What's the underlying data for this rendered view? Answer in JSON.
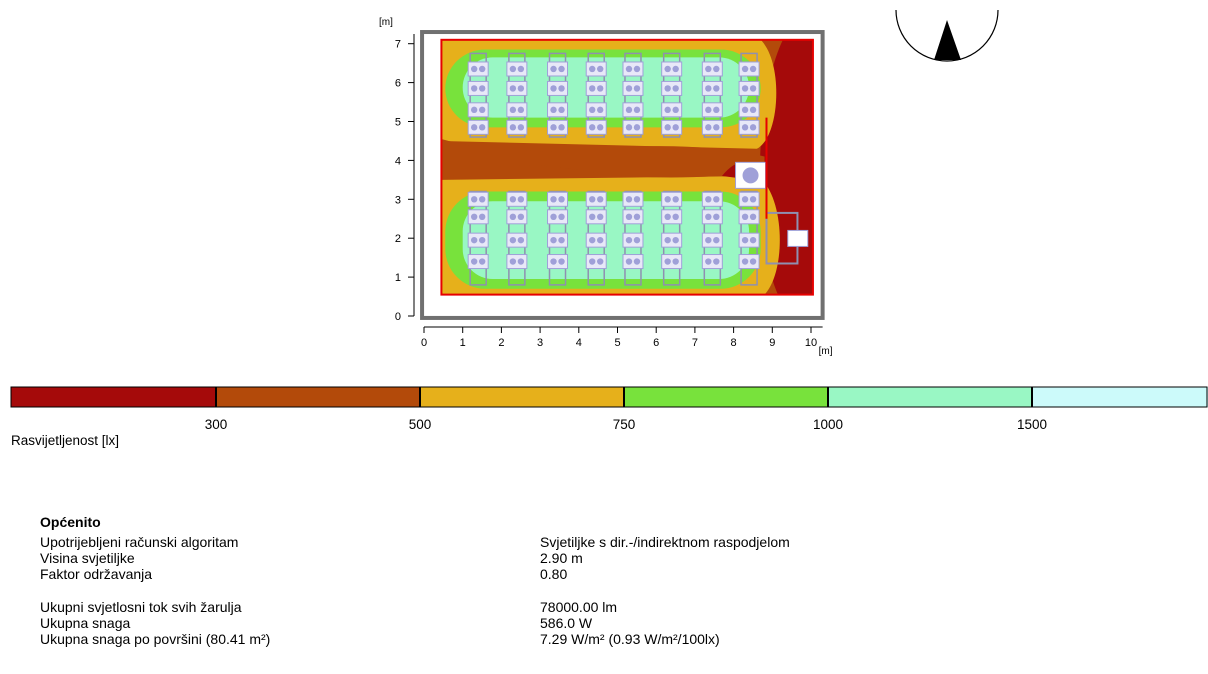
{
  "chart_data": {
    "type": "heatmap",
    "title": "",
    "xlabel": "[m]",
    "ylabel": "[m]",
    "xlim": [
      0,
      10.3
    ],
    "ylim": [
      0,
      7.25
    ],
    "x_ticks": [
      "0",
      "1",
      "2",
      "3",
      "4",
      "5",
      "6",
      "7",
      "8",
      "9",
      "10"
    ],
    "y_ticks": [
      "0",
      "1",
      "2",
      "3",
      "4",
      "5",
      "6",
      "7"
    ],
    "room_interior": {
      "x": [
        0.45,
        10.05
      ],
      "y": [
        0.55,
        7.1
      ]
    },
    "contour_levels": [
      "300",
      "500",
      "750",
      "1000",
      "1500"
    ],
    "legend_label": "Rasvijetljenost [lx]",
    "legend_colors": [
      "#a50a0a",
      "#b34a0a",
      "#e6b01b",
      "#78e23c",
      "#99f7c4",
      "#ccfafa"
    ],
    "luminaire_columns_x": [
      1.4,
      2.4,
      3.45,
      4.45,
      5.4,
      6.4,
      7.45,
      8.4
    ],
    "luminaire_rows_y": [
      6.35,
      5.85,
      5.3,
      4.85,
      3.0,
      2.55,
      1.95,
      1.4
    ]
  },
  "colors": {
    "dark_red": "#a50a0a",
    "brown": "#b34a0a",
    "orange": "#e6b01b",
    "green": "#78e23c",
    "light_green": "#99f7c4",
    "pale_cyan": "#ccfafa",
    "room_border": "#e60000",
    "luminaire": "#9fa0d8"
  },
  "icons": {
    "north": "north-arrow-icon"
  },
  "info": {
    "heading": "Općenito",
    "rows": [
      {
        "label": "Upotrijebljeni računski algoritam",
        "value": "Svjetiljke s dir.-/indirektnom raspodjelom"
      },
      {
        "label": "Visina svjetiljke",
        "value": "2.90 m"
      },
      {
        "label": "Faktor održavanja",
        "value": "0.80"
      },
      {
        "label": "Ukupni svjetlosni tok svih žarulja",
        "value": "78000.00 lm"
      },
      {
        "label": "Ukupna snaga",
        "value": "586.0 W"
      },
      {
        "label": "Ukupna snaga po površini (80.41 m²)",
        "value": "7.29 W/m² (0.93 W/m²/100lx)"
      }
    ]
  }
}
